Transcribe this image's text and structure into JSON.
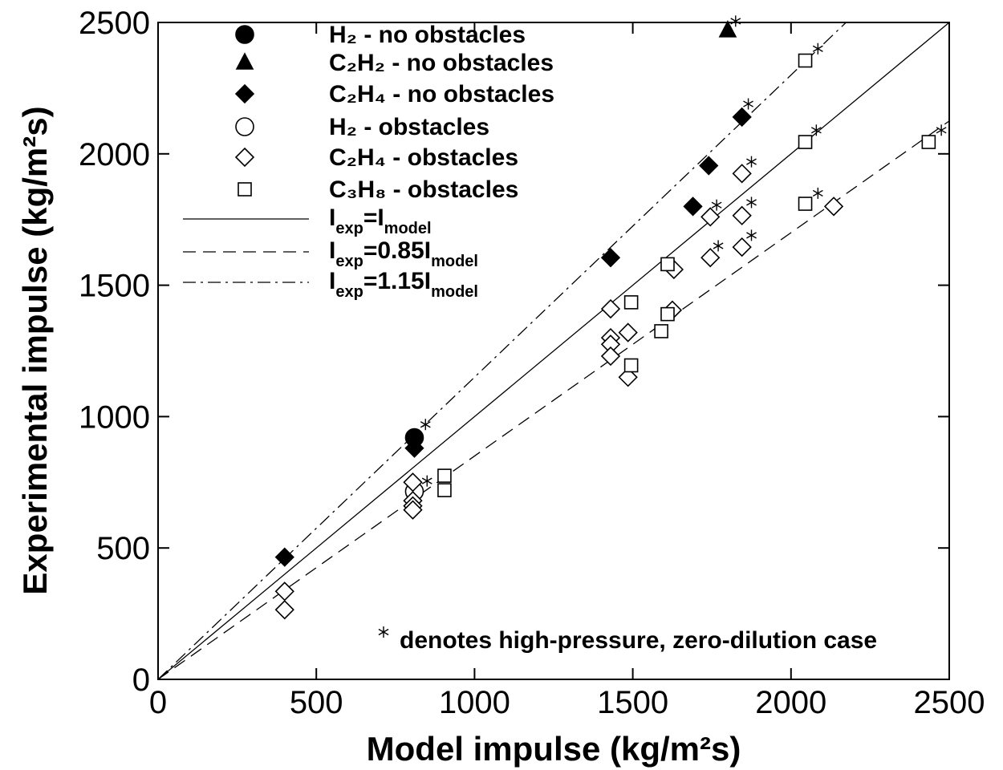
{
  "chart_data": {
    "type": "scatter",
    "x_label": "Model impulse (kg/m²s)",
    "y_label": "Experimental impulse (kg/m²s)",
    "xlim": [
      0,
      2500
    ],
    "ylim": [
      0,
      2500
    ],
    "xticks": [
      0,
      500,
      1000,
      1500,
      2000,
      2500
    ],
    "yticks": [
      0,
      500,
      1000,
      1500,
      2000,
      2500
    ],
    "series": [
      {
        "name": "H₂  - no obstacles",
        "marker": "circle",
        "filled": true,
        "color": "#000000",
        "x": [
          810
        ],
        "values": [
          920
        ]
      },
      {
        "name": "C₂H₂ - no obstacles",
        "marker": "triangle",
        "filled": true,
        "color": "#000000",
        "x": [
          1800
        ],
        "values": [
          2470
        ]
      },
      {
        "name": "C₂H₄ - no obstacles",
        "marker": "diamond",
        "filled": true,
        "color": "#000000",
        "x": [
          400,
          810,
          1430,
          1690,
          1740,
          1845
        ],
        "values": [
          465,
          880,
          1605,
          1800,
          1955,
          2140
        ]
      },
      {
        "name": "H₂ - obstacles",
        "marker": "circle",
        "filled": false,
        "color": "#000000",
        "x": [
          810
        ],
        "values": [
          715
        ]
      },
      {
        "name": "C₂H₄ - obstacles",
        "marker": "diamond",
        "filled": false,
        "color": "#000000",
        "x": [
          400,
          400,
          805,
          805,
          805,
          805,
          1430,
          1430,
          1430,
          1430,
          1485,
          1485,
          1625,
          1630,
          1745,
          1745,
          1845,
          1845,
          1845,
          2135
        ],
        "values": [
          335,
          265,
          750,
          680,
          660,
          645,
          1410,
          1300,
          1275,
          1230,
          1320,
          1150,
          1405,
          1560,
          1760,
          1605,
          1925,
          1765,
          1645,
          1800
        ]
      },
      {
        "name": "C₃H₈ - obstacles",
        "marker": "square",
        "filled": false,
        "color": "#000000",
        "x": [
          905,
          905,
          1495,
          1495,
          1590,
          1610,
          1610,
          2045,
          2045,
          2045,
          2435
        ],
        "values": [
          775,
          720,
          1435,
          1195,
          1325,
          1580,
          1390,
          2355,
          2045,
          1810,
          2045
        ]
      },
      {
        "name": "denotes high-pressure, zero-dilution case",
        "marker": "star",
        "filled": false,
        "color": "#000000",
        "x": [
          845,
          850,
          1825,
          2085,
          1865,
          2080,
          1875,
          1765,
          1875,
          2085,
          1875,
          1770,
          2475
        ],
        "values": [
          970,
          755,
          2505,
          2400,
          2190,
          2090,
          1970,
          1805,
          1815,
          1850,
          1690,
          1650,
          2090
        ]
      }
    ],
    "lines": [
      {
        "name": [
          "I",
          "exp",
          "=I",
          "model"
        ],
        "slope": 1,
        "dash": "solid"
      },
      {
        "name": [
          "I",
          "exp",
          "=0.85I",
          "model"
        ],
        "slope": 0.85,
        "dash": "dashed"
      },
      {
        "name": [
          "I",
          "exp",
          "=1.15I",
          "model"
        ],
        "slope": 1.15,
        "dash": "dashdot"
      }
    ]
  }
}
